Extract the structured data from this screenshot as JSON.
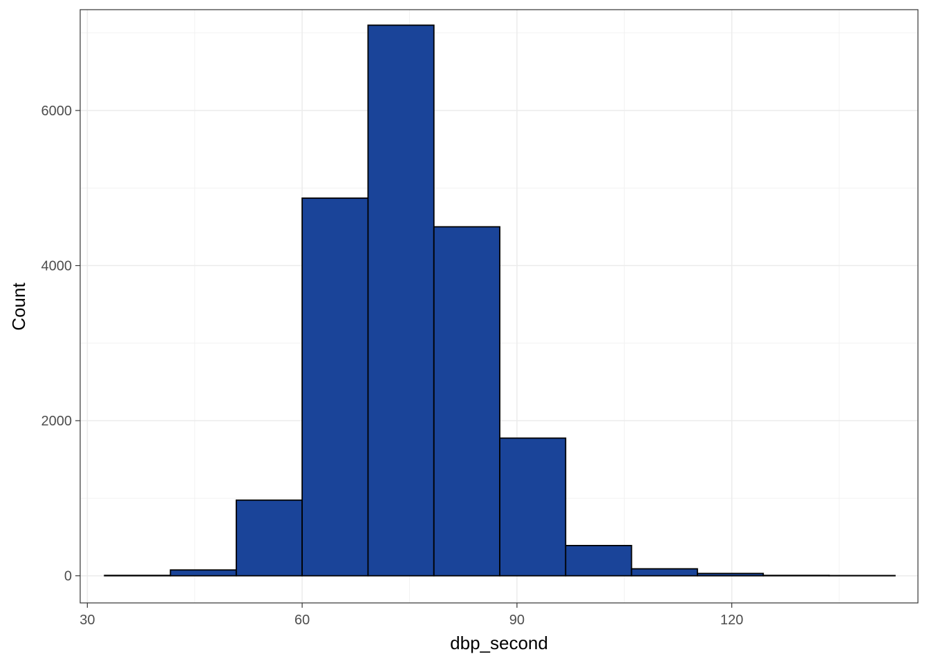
{
  "chart_data": {
    "type": "bar",
    "subtype": "histogram",
    "title": "",
    "xlabel": "dbp_second",
    "ylabel": "Count",
    "xlim": [
      29,
      146
    ],
    "ylim": [
      -350,
      7300
    ],
    "x_ticks": [
      30,
      60,
      90,
      120
    ],
    "y_ticks": [
      0,
      2000,
      4000,
      6000
    ],
    "grid": true,
    "legend": "none",
    "bar_fill": "#1a4499",
    "bar_stroke": "#000000",
    "bins": [
      {
        "x0": 32.4,
        "x1": 41.6,
        "count": 5
      },
      {
        "x0": 41.6,
        "x1": 50.8,
        "count": 75
      },
      {
        "x0": 50.8,
        "x1": 60.0,
        "count": 975
      },
      {
        "x0": 60.0,
        "x1": 69.2,
        "count": 4870
      },
      {
        "x0": 69.2,
        "x1": 78.4,
        "count": 7100
      },
      {
        "x0": 78.4,
        "x1": 87.6,
        "count": 4500
      },
      {
        "x0": 87.6,
        "x1": 96.8,
        "count": 1775
      },
      {
        "x0": 96.8,
        "x1": 106.0,
        "count": 390
      },
      {
        "x0": 106.0,
        "x1": 115.2,
        "count": 90
      },
      {
        "x0": 115.2,
        "x1": 124.4,
        "count": 30
      },
      {
        "x0": 124.4,
        "x1": 133.6,
        "count": 5
      },
      {
        "x0": 133.6,
        "x1": 142.8,
        "count": 3
      }
    ]
  }
}
